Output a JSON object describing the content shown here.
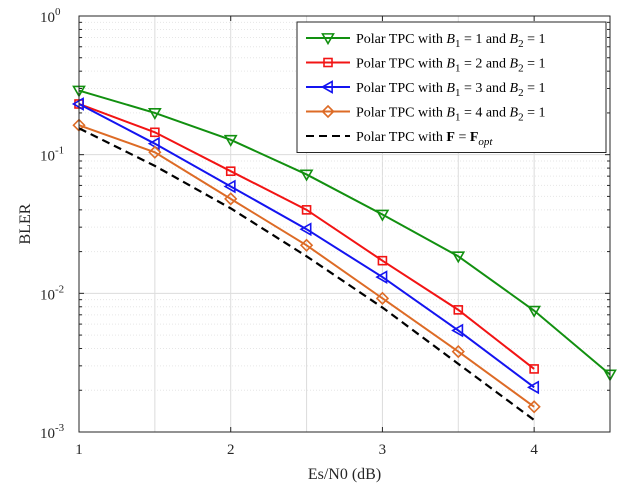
{
  "chart_data": {
    "type": "line",
    "title": "",
    "xlabel": "Es/N0 (dB)",
    "ylabel": "BLER",
    "xlim": [
      1,
      4.5
    ],
    "ylim": [
      0.001,
      1
    ],
    "yscale": "log",
    "grid": true,
    "legend_position": "top-right",
    "x_ticks": [
      {
        "value": 1,
        "label": "1"
      },
      {
        "value": 2,
        "label": "2"
      },
      {
        "value": 3,
        "label": "3"
      },
      {
        "value": 4,
        "label": "4"
      }
    ],
    "y_ticks": [
      {
        "value": 1,
        "base": "10",
        "exp": "0"
      },
      {
        "value": 0.1,
        "base": "10",
        "exp": "-1"
      },
      {
        "value": 0.01,
        "base": "10",
        "exp": "-2"
      },
      {
        "value": 0.001,
        "base": "10",
        "exp": "-3"
      }
    ],
    "series": [
      {
        "name": "Polar TPC with B1 = 1 and B2 = 1",
        "legend_parts": [
          "Polar TPC with ",
          "B",
          "1",
          " = 1 and ",
          "B",
          "2",
          " = 1"
        ],
        "color": "#129010",
        "marker": "triangle-down",
        "dash": false,
        "x": [
          1,
          1.5,
          2,
          2.5,
          3,
          3.5,
          4,
          4.5
        ],
        "y": [
          0.29,
          0.2,
          0.128,
          0.072,
          0.037,
          0.0185,
          0.0075,
          0.0026
        ]
      },
      {
        "name": "Polar TPC with B1 = 2 and B2 = 1",
        "legend_parts": [
          "Polar TPC with ",
          "B",
          "1",
          " = 2 and ",
          "B",
          "2",
          " = 1"
        ],
        "color": "#f21414",
        "marker": "square",
        "dash": false,
        "x": [
          1,
          1.5,
          2,
          2.5,
          3,
          3.5,
          4
        ],
        "y": [
          0.232,
          0.145,
          0.076,
          0.04,
          0.0172,
          0.0076,
          0.00285
        ]
      },
      {
        "name": "Polar TPC with B1 = 3 and B2 = 1",
        "legend_parts": [
          "Polar TPC with ",
          "B",
          "1",
          " = 3 and ",
          "B",
          "2",
          " = 1"
        ],
        "color": "#1414f0",
        "marker": "triangle-left",
        "dash": false,
        "x": [
          1,
          1.5,
          2,
          2.5,
          3,
          3.5,
          4
        ],
        "y": [
          0.232,
          0.12,
          0.059,
          0.029,
          0.0131,
          0.0054,
          0.0021
        ]
      },
      {
        "name": "Polar TPC with B1 = 4 and B2 = 1",
        "legend_parts": [
          "Polar TPC with ",
          "B",
          "1",
          " = 4 and ",
          "B",
          "2",
          " = 1"
        ],
        "color": "#dd6b26",
        "marker": "diamond",
        "dash": false,
        "x": [
          1,
          1.5,
          2,
          2.5,
          3,
          3.5,
          4
        ],
        "y": [
          0.163,
          0.104,
          0.048,
          0.0222,
          0.0092,
          0.0038,
          0.00152
        ]
      },
      {
        "name": "Polar TPC with F = Fopt",
        "legend_parts": [
          "Polar TPC with ",
          "F",
          "",
          " = ",
          "F",
          "opt",
          ""
        ],
        "color": "#000000",
        "marker": "none",
        "dash": true,
        "x": [
          1,
          1.5,
          2,
          2.5,
          3,
          3.5,
          4
        ],
        "y": [
          0.155,
          0.083,
          0.041,
          0.0185,
          0.0079,
          0.0031,
          0.00122
        ]
      }
    ]
  }
}
